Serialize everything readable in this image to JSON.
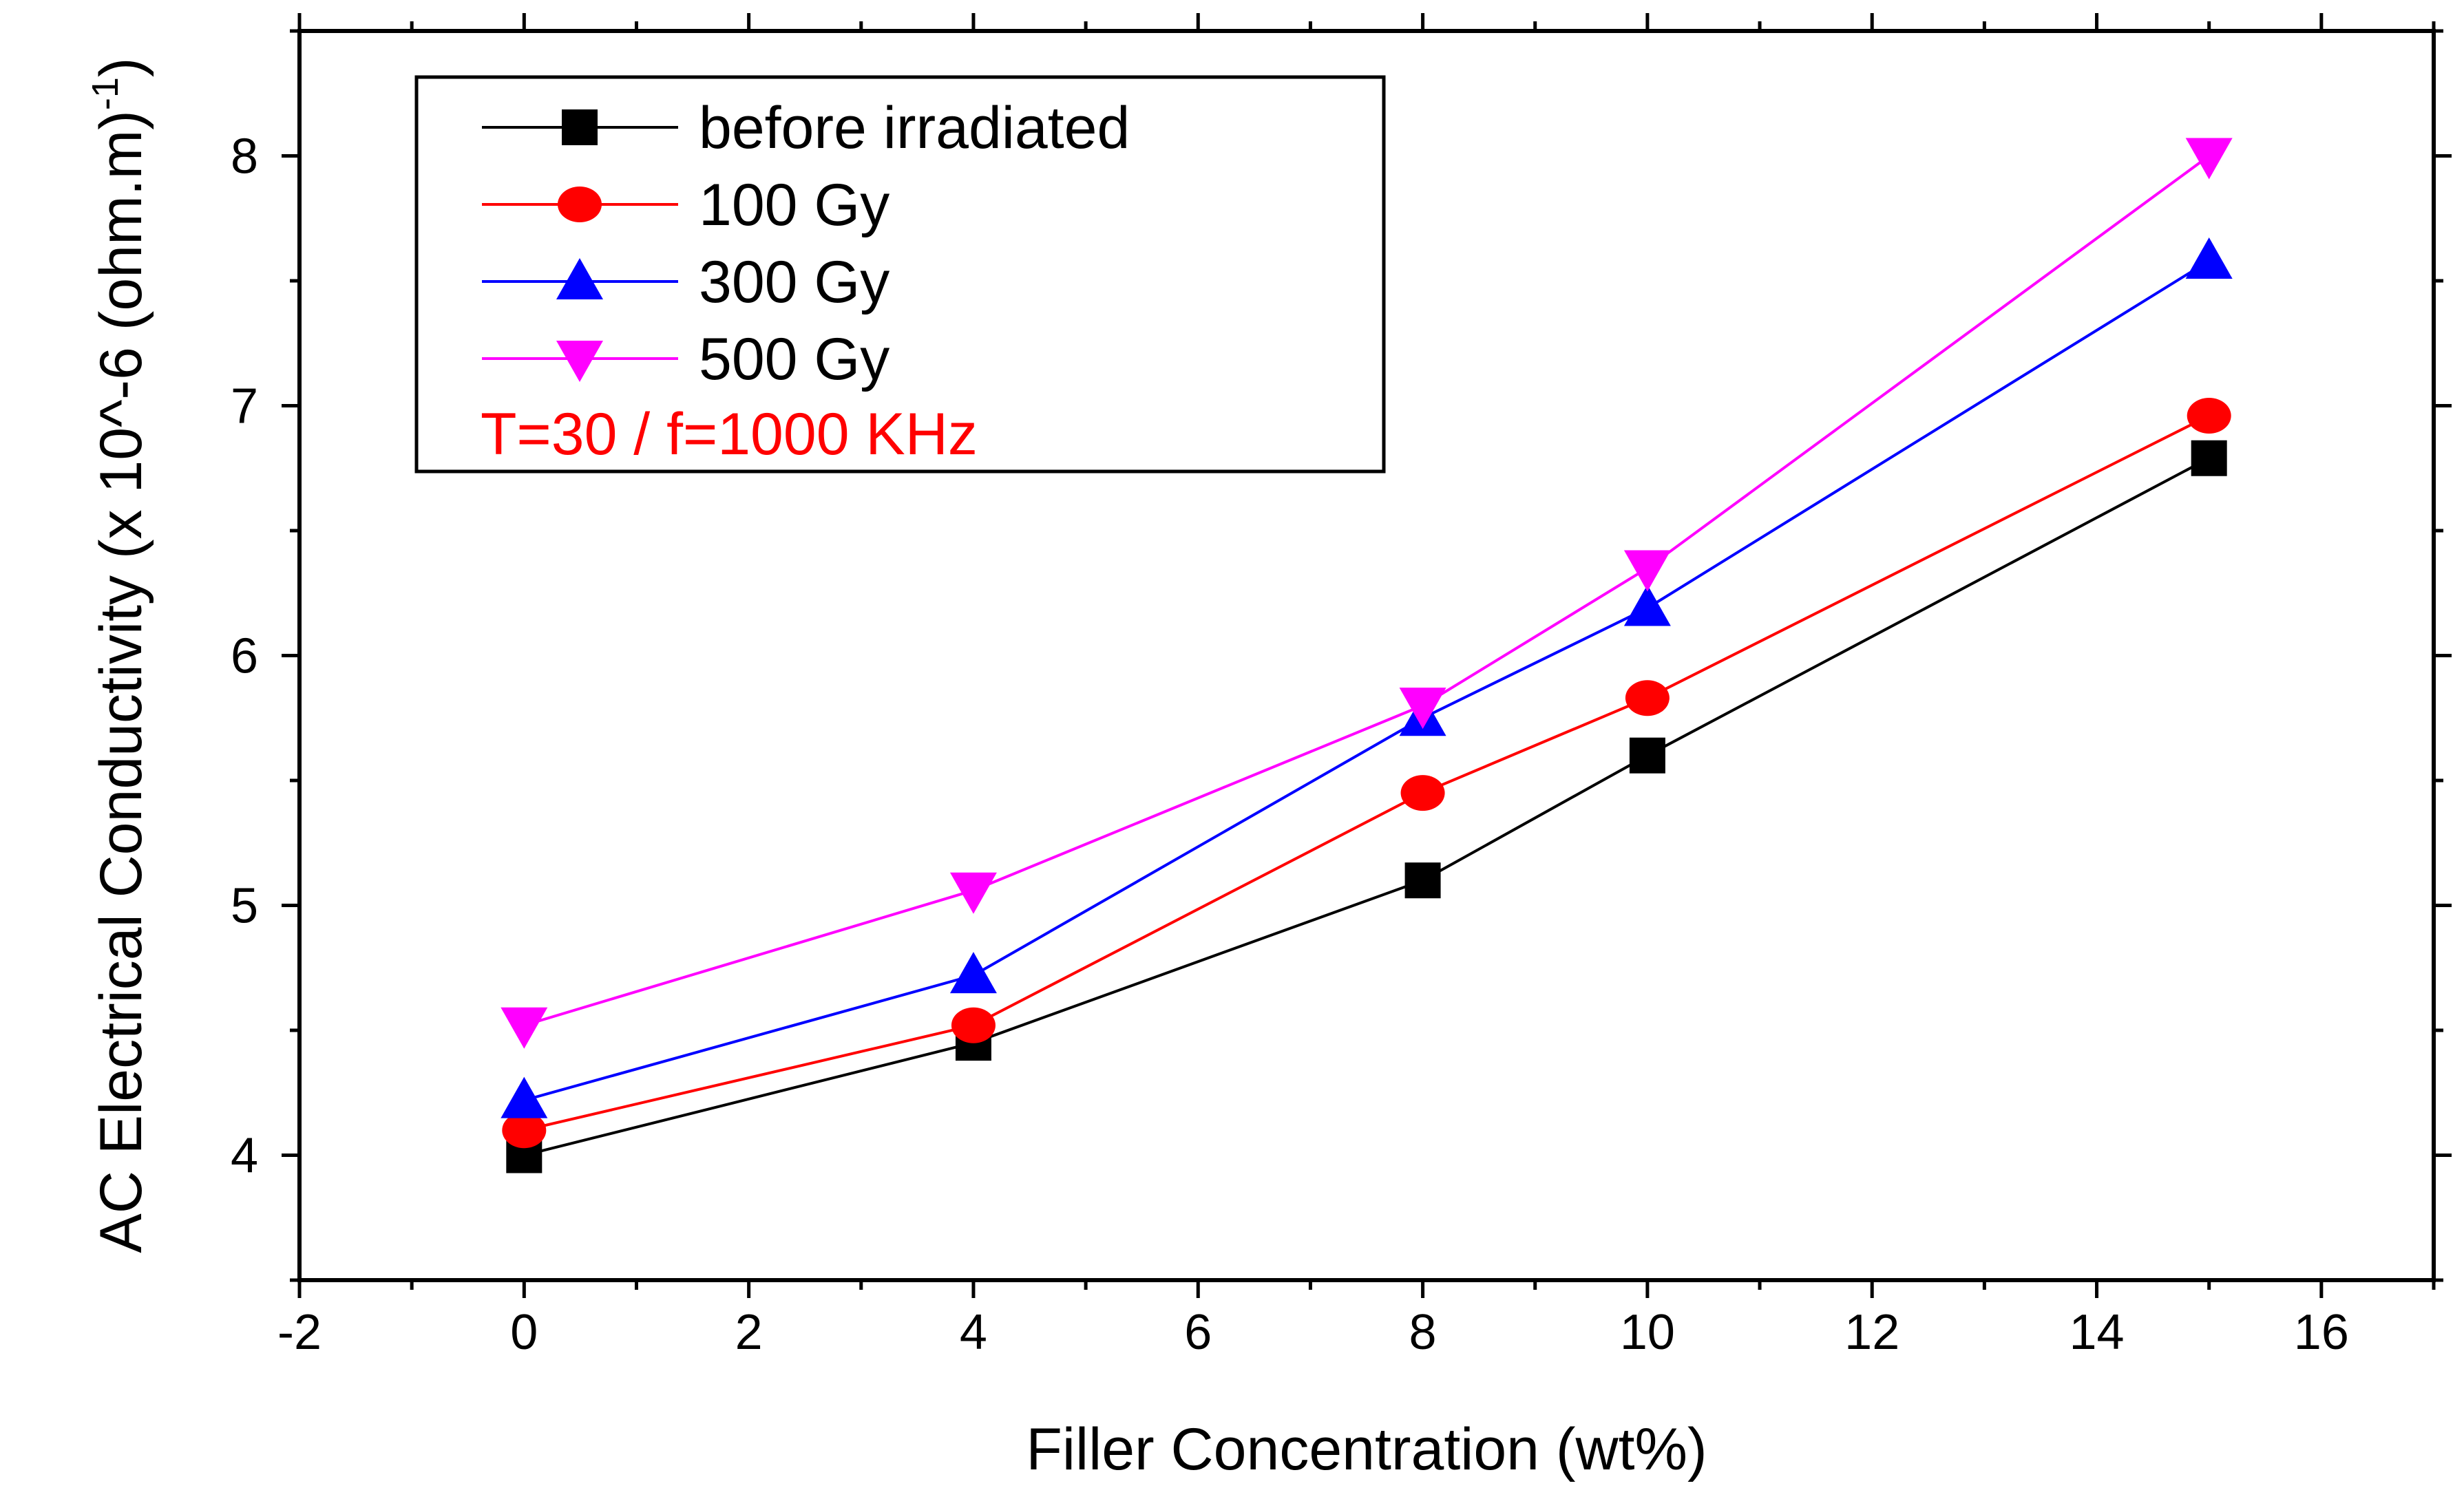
{
  "chart_data": {
    "type": "line",
    "xlabel": "Filler Concentration (wt%)",
    "ylabel": "AC Electrical Conductivity (x 10^-6 (ohm.m)",
    "ylabel_superscript": "-1",
    "ylabel_close": ")",
    "xlim": [
      -2,
      17
    ],
    "ylim": [
      3.5,
      8.5
    ],
    "x_ticks": [
      -2,
      0,
      2,
      4,
      6,
      8,
      10,
      12,
      14,
      16
    ],
    "y_ticks": [
      4,
      5,
      6,
      7,
      8
    ],
    "x": [
      0,
      4,
      8,
      10,
      15
    ],
    "series": [
      {
        "name": "before irradiated",
        "color": "#000000",
        "marker": "square",
        "values": [
          4.0,
          4.45,
          5.1,
          5.6,
          6.79
        ]
      },
      {
        "name": "100 Gy",
        "color": "#ff0000",
        "marker": "circle",
        "values": [
          4.1,
          4.52,
          5.45,
          5.83,
          6.96
        ]
      },
      {
        "name": "300 Gy",
        "color": "#0000ff",
        "marker": "triangle-up",
        "values": [
          4.22,
          4.72,
          5.75,
          6.19,
          7.58
        ]
      },
      {
        "name": "500 Gy",
        "color": "#ff00ff",
        "marker": "triangle-down",
        "values": [
          4.52,
          5.06,
          5.8,
          6.35,
          8.0
        ]
      }
    ],
    "legend_note": "T=30 / f=1000 KHz",
    "legend_note_color": "#ff0000",
    "legend_position": "top-left"
  }
}
